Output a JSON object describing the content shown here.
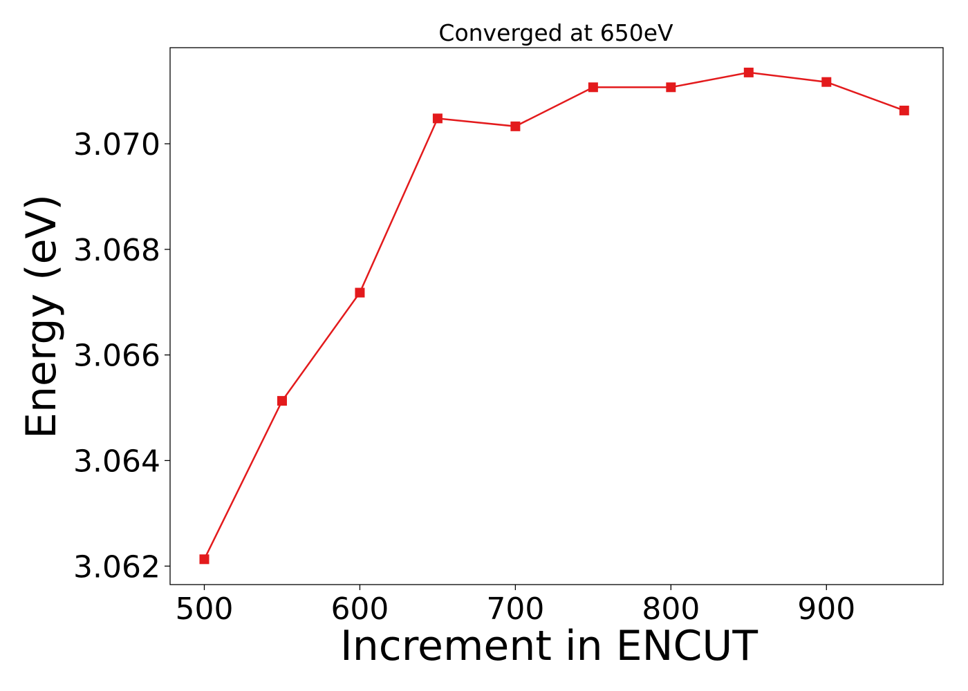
{
  "chart_data": {
    "type": "line",
    "title": "Converged at 650eV",
    "xlabel": "Increment in ENCUT",
    "ylabel": "Energy (eV)",
    "xlim": [
      478,
      975
    ],
    "ylim": [
      3.06165,
      3.07182
    ],
    "x_ticks": [
      500,
      600,
      700,
      800,
      900
    ],
    "x_tick_labels": [
      "500",
      "600",
      "700",
      "800",
      "900"
    ],
    "y_ticks": [
      3.062,
      3.064,
      3.066,
      3.068,
      3.07
    ],
    "y_tick_labels": [
      "3.062",
      "3.064",
      "3.066",
      "3.068",
      "3.070"
    ],
    "grid": false,
    "legend": "none",
    "series": [
      {
        "color": "#e31a1c",
        "marker": "square",
        "x": [
          500,
          550,
          600,
          650,
          700,
          750,
          800,
          850,
          900,
          950
        ],
        "y": [
          3.06213,
          3.06513,
          3.06718,
          3.07048,
          3.07033,
          3.07107,
          3.07107,
          3.07135,
          3.07117,
          3.07063
        ]
      }
    ]
  }
}
